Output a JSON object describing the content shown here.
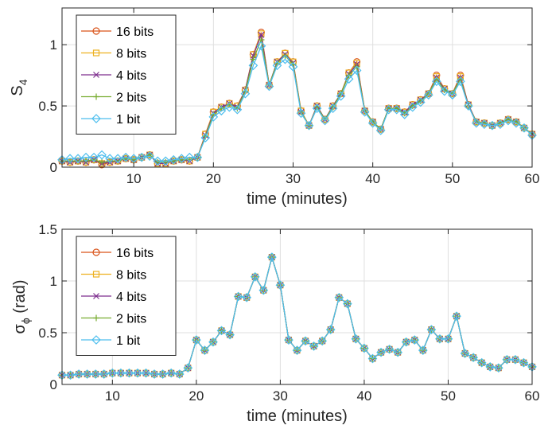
{
  "chart_data": [
    {
      "type": "line",
      "xlabel": "time (minutes)",
      "ylabel": "S",
      "ylabel_sub": "4",
      "xlim": [
        1,
        60
      ],
      "ylim": [
        0,
        1.3
      ],
      "xticks": [
        10,
        20,
        30,
        40,
        50,
        60
      ],
      "yticks": [
        0,
        0.5,
        1
      ],
      "ytick_labels": [
        "0",
        "0.5",
        "1"
      ],
      "grid": true,
      "legend_position": "top-left",
      "x": [
        1,
        2,
        3,
        4,
        5,
        6,
        7,
        8,
        9,
        10,
        11,
        12,
        13,
        14,
        15,
        16,
        17,
        18,
        19,
        20,
        21,
        22,
        23,
        24,
        25,
        26,
        27,
        28,
        29,
        30,
        31,
        32,
        33,
        34,
        35,
        36,
        37,
        38,
        39,
        40,
        41,
        42,
        43,
        44,
        45,
        46,
        47,
        48,
        49,
        50,
        51,
        52,
        53,
        54,
        55,
        56,
        57,
        58,
        59,
        60
      ],
      "series": [
        {
          "name": "16 bits",
          "color": "#D95319",
          "marker": "circle",
          "values": [
            0.05,
            0.04,
            0.05,
            0.04,
            0.06,
            0.02,
            0.04,
            0.05,
            0.07,
            0.06,
            0.08,
            0.1,
            0.03,
            0.03,
            0.05,
            0.06,
            0.05,
            0.08,
            0.27,
            0.45,
            0.49,
            0.52,
            0.5,
            0.63,
            0.92,
            1.1,
            0.67,
            0.86,
            0.93,
            0.86,
            0.46,
            0.34,
            0.5,
            0.39,
            0.5,
            0.6,
            0.77,
            0.86,
            0.46,
            0.37,
            0.31,
            0.48,
            0.48,
            0.45,
            0.51,
            0.55,
            0.6,
            0.75,
            0.64,
            0.6,
            0.75,
            0.51,
            0.37,
            0.36,
            0.34,
            0.36,
            0.39,
            0.37,
            0.32,
            0.27
          ]
        },
        {
          "name": "8 bits",
          "color": "#EDB120",
          "marker": "square",
          "values": [
            0.05,
            0.04,
            0.05,
            0.04,
            0.06,
            0.03,
            0.04,
            0.05,
            0.07,
            0.06,
            0.08,
            0.1,
            0.03,
            0.03,
            0.05,
            0.06,
            0.05,
            0.08,
            0.27,
            0.45,
            0.49,
            0.52,
            0.5,
            0.63,
            0.92,
            1.09,
            0.67,
            0.86,
            0.93,
            0.86,
            0.46,
            0.34,
            0.5,
            0.39,
            0.5,
            0.6,
            0.77,
            0.85,
            0.46,
            0.37,
            0.31,
            0.48,
            0.48,
            0.45,
            0.51,
            0.55,
            0.6,
            0.74,
            0.64,
            0.6,
            0.74,
            0.51,
            0.37,
            0.36,
            0.34,
            0.36,
            0.39,
            0.37,
            0.32,
            0.27
          ]
        },
        {
          "name": "4 bits",
          "color": "#7E2F8E",
          "marker": "x",
          "values": [
            0.05,
            0.04,
            0.05,
            0.04,
            0.06,
            0.03,
            0.04,
            0.05,
            0.07,
            0.06,
            0.08,
            0.1,
            0.03,
            0.03,
            0.05,
            0.06,
            0.05,
            0.08,
            0.26,
            0.44,
            0.49,
            0.52,
            0.49,
            0.63,
            0.91,
            1.08,
            0.67,
            0.86,
            0.92,
            0.85,
            0.45,
            0.34,
            0.5,
            0.39,
            0.5,
            0.6,
            0.76,
            0.84,
            0.46,
            0.37,
            0.31,
            0.48,
            0.48,
            0.45,
            0.51,
            0.55,
            0.6,
            0.73,
            0.64,
            0.6,
            0.73,
            0.51,
            0.37,
            0.36,
            0.34,
            0.36,
            0.39,
            0.37,
            0.32,
            0.27
          ]
        },
        {
          "name": "2 bits",
          "color": "#77AC30",
          "marker": "plus",
          "values": [
            0.05,
            0.05,
            0.05,
            0.05,
            0.06,
            0.04,
            0.05,
            0.05,
            0.07,
            0.06,
            0.08,
            0.1,
            0.04,
            0.04,
            0.05,
            0.06,
            0.06,
            0.08,
            0.25,
            0.43,
            0.48,
            0.51,
            0.48,
            0.62,
            0.88,
            1.04,
            0.67,
            0.85,
            0.91,
            0.84,
            0.45,
            0.34,
            0.49,
            0.39,
            0.49,
            0.6,
            0.75,
            0.82,
            0.46,
            0.37,
            0.31,
            0.48,
            0.48,
            0.44,
            0.5,
            0.54,
            0.6,
            0.72,
            0.63,
            0.6,
            0.72,
            0.5,
            0.37,
            0.36,
            0.34,
            0.36,
            0.39,
            0.37,
            0.32,
            0.27
          ]
        },
        {
          "name": "1 bit",
          "color": "#4DBEEE",
          "marker": "diamond",
          "values": [
            0.06,
            0.07,
            0.07,
            0.08,
            0.08,
            0.1,
            0.07,
            0.07,
            0.08,
            0.07,
            0.08,
            0.09,
            0.05,
            0.05,
            0.06,
            0.07,
            0.08,
            0.08,
            0.24,
            0.41,
            0.46,
            0.49,
            0.47,
            0.6,
            0.83,
            0.99,
            0.66,
            0.83,
            0.88,
            0.82,
            0.44,
            0.34,
            0.48,
            0.38,
            0.48,
            0.58,
            0.72,
            0.79,
            0.45,
            0.36,
            0.3,
            0.47,
            0.47,
            0.43,
            0.49,
            0.53,
            0.59,
            0.7,
            0.62,
            0.59,
            0.7,
            0.5,
            0.36,
            0.35,
            0.34,
            0.35,
            0.38,
            0.36,
            0.32,
            0.26
          ]
        }
      ]
    },
    {
      "type": "line",
      "xlabel": "time (minutes)",
      "ylabel": "σ",
      "ylabel_sub": "ϕ",
      "ylabel_suffix": " (rad)",
      "xlim": [
        4,
        60
      ],
      "ylim": [
        0,
        1.5
      ],
      "xticks": [
        10,
        20,
        30,
        40,
        50,
        60
      ],
      "yticks": [
        0,
        0.5,
        1,
        1.5
      ],
      "ytick_labels": [
        "0",
        "0.5",
        "1",
        "1.5"
      ],
      "grid": true,
      "legend_position": "top-left",
      "x": [
        4,
        5,
        6,
        7,
        8,
        9,
        10,
        11,
        12,
        13,
        14,
        15,
        16,
        17,
        18,
        19,
        20,
        21,
        22,
        23,
        24,
        25,
        26,
        27,
        28,
        29,
        30,
        31,
        32,
        33,
        34,
        35,
        36,
        37,
        38,
        39,
        40,
        41,
        42,
        43,
        44,
        45,
        46,
        47,
        48,
        49,
        50,
        51,
        52,
        53,
        54,
        55,
        56,
        57,
        58,
        59,
        60
      ],
      "series": [
        {
          "name": "16 bits",
          "color": "#D95319",
          "marker": "circle",
          "values": [
            0.09,
            0.09,
            0.1,
            0.1,
            0.1,
            0.1,
            0.11,
            0.11,
            0.11,
            0.11,
            0.11,
            0.1,
            0.1,
            0.11,
            0.1,
            0.16,
            0.43,
            0.33,
            0.41,
            0.52,
            0.48,
            0.85,
            0.84,
            1.04,
            0.91,
            1.23,
            0.96,
            0.43,
            0.33,
            0.42,
            0.37,
            0.42,
            0.53,
            0.84,
            0.78,
            0.44,
            0.35,
            0.25,
            0.31,
            0.34,
            0.31,
            0.41,
            0.43,
            0.33,
            0.53,
            0.44,
            0.44,
            0.66,
            0.3,
            0.26,
            0.21,
            0.17,
            0.16,
            0.24,
            0.24,
            0.21,
            0.17
          ]
        },
        {
          "name": "8 bits",
          "color": "#EDB120",
          "marker": "square",
          "values": [
            0.09,
            0.09,
            0.1,
            0.1,
            0.1,
            0.1,
            0.11,
            0.11,
            0.11,
            0.11,
            0.11,
            0.1,
            0.1,
            0.11,
            0.1,
            0.16,
            0.43,
            0.33,
            0.41,
            0.52,
            0.48,
            0.85,
            0.84,
            1.04,
            0.91,
            1.23,
            0.96,
            0.43,
            0.33,
            0.42,
            0.37,
            0.42,
            0.53,
            0.84,
            0.78,
            0.44,
            0.35,
            0.25,
            0.31,
            0.34,
            0.31,
            0.41,
            0.43,
            0.33,
            0.53,
            0.44,
            0.44,
            0.66,
            0.3,
            0.26,
            0.21,
            0.17,
            0.16,
            0.24,
            0.24,
            0.21,
            0.17
          ]
        },
        {
          "name": "4 bits",
          "color": "#7E2F8E",
          "marker": "x",
          "values": [
            0.09,
            0.09,
            0.1,
            0.1,
            0.1,
            0.1,
            0.11,
            0.11,
            0.11,
            0.11,
            0.11,
            0.1,
            0.1,
            0.11,
            0.1,
            0.16,
            0.43,
            0.33,
            0.41,
            0.52,
            0.48,
            0.85,
            0.84,
            1.04,
            0.91,
            1.23,
            0.96,
            0.43,
            0.33,
            0.42,
            0.37,
            0.42,
            0.53,
            0.84,
            0.78,
            0.44,
            0.35,
            0.25,
            0.31,
            0.34,
            0.31,
            0.41,
            0.43,
            0.33,
            0.53,
            0.44,
            0.44,
            0.66,
            0.3,
            0.26,
            0.21,
            0.17,
            0.16,
            0.24,
            0.24,
            0.21,
            0.17
          ]
        },
        {
          "name": "2 bits",
          "color": "#77AC30",
          "marker": "plus",
          "values": [
            0.09,
            0.09,
            0.1,
            0.1,
            0.1,
            0.1,
            0.11,
            0.11,
            0.11,
            0.11,
            0.11,
            0.1,
            0.1,
            0.11,
            0.1,
            0.16,
            0.43,
            0.33,
            0.41,
            0.52,
            0.48,
            0.85,
            0.84,
            1.04,
            0.91,
            1.23,
            0.96,
            0.43,
            0.33,
            0.42,
            0.37,
            0.42,
            0.53,
            0.84,
            0.78,
            0.44,
            0.35,
            0.25,
            0.31,
            0.34,
            0.31,
            0.41,
            0.43,
            0.33,
            0.53,
            0.44,
            0.44,
            0.66,
            0.3,
            0.26,
            0.21,
            0.17,
            0.16,
            0.24,
            0.24,
            0.21,
            0.17
          ]
        },
        {
          "name": "1 bit",
          "color": "#4DBEEE",
          "marker": "diamond",
          "values": [
            0.09,
            0.09,
            0.1,
            0.1,
            0.1,
            0.1,
            0.11,
            0.11,
            0.11,
            0.11,
            0.11,
            0.1,
            0.1,
            0.11,
            0.1,
            0.16,
            0.43,
            0.33,
            0.41,
            0.52,
            0.48,
            0.85,
            0.84,
            1.04,
            0.91,
            1.23,
            0.96,
            0.43,
            0.33,
            0.42,
            0.37,
            0.42,
            0.53,
            0.84,
            0.78,
            0.44,
            0.35,
            0.25,
            0.31,
            0.34,
            0.31,
            0.41,
            0.43,
            0.33,
            0.53,
            0.44,
            0.44,
            0.66,
            0.3,
            0.26,
            0.21,
            0.17,
            0.16,
            0.24,
            0.24,
            0.21,
            0.17
          ]
        }
      ]
    }
  ]
}
